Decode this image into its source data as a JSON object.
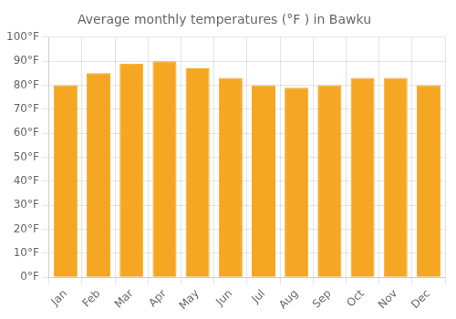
{
  "chart_data": {
    "type": "bar",
    "title": "Average monthly temperatures (°F ) in Bawku",
    "categories": [
      "Jan",
      "Feb",
      "Mar",
      "Apr",
      "May",
      "Jun",
      "Jul",
      "Aug",
      "Sep",
      "Oct",
      "Nov",
      "Dec"
    ],
    "values": [
      80,
      85,
      89,
      90,
      87,
      83,
      80,
      79,
      80,
      83,
      83,
      80
    ],
    "color": "#F5A623",
    "ylim": [
      0,
      100
    ],
    "yticks": [
      {
        "value": 0,
        "label": "0°F"
      },
      {
        "value": 10,
        "label": "10°F"
      },
      {
        "value": 20,
        "label": "20°F"
      },
      {
        "value": 30,
        "label": "30°F"
      },
      {
        "value": 40,
        "label": "40°F"
      },
      {
        "value": 50,
        "label": "50°F"
      },
      {
        "value": 60,
        "label": "60°F"
      },
      {
        "value": 70,
        "label": "70°F"
      },
      {
        "value": 80,
        "label": "80°F"
      },
      {
        "value": 90,
        "label": "90°F"
      },
      {
        "value": 100,
        "label": "100°F"
      }
    ],
    "grid": true
  }
}
